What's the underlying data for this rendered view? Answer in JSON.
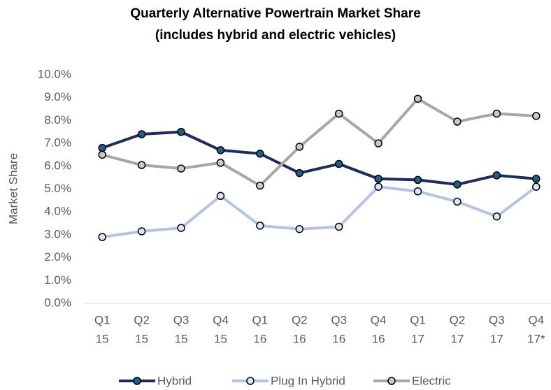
{
  "chart_data": {
    "type": "line",
    "title": "Quarterly Alternative Powertrain Market Share",
    "subtitle": "(includes hybrid and electric vehicles)",
    "y_label": "Market Share",
    "categories": [
      [
        "Q1",
        "15"
      ],
      [
        "Q2",
        "15"
      ],
      [
        "Q3",
        "15"
      ],
      [
        "Q4",
        "15"
      ],
      [
        "Q1",
        "16"
      ],
      [
        "Q2",
        "16"
      ],
      [
        "Q3",
        "16"
      ],
      [
        "Q4",
        "16"
      ],
      [
        "Q1",
        "17"
      ],
      [
        "Q2",
        "17"
      ],
      [
        "Q3",
        "17"
      ],
      [
        "Q4",
        "17*"
      ]
    ],
    "series": [
      {
        "name": "Hybrid",
        "color": "#1f2a60",
        "marker_color": "#1f5f8b",
        "values": [
          6.8,
          7.4,
          7.5,
          6.7,
          6.55,
          5.7,
          6.1,
          5.45,
          5.4,
          5.2,
          5.6,
          5.45
        ]
      },
      {
        "name": "Plug In Hybrid",
        "color": "#b4c3e3",
        "marker_color": "#dde4f2",
        "values": [
          2.9,
          3.15,
          3.3,
          4.7,
          3.4,
          3.25,
          3.35,
          5.1,
          4.9,
          4.45,
          3.8,
          5.1
        ]
      },
      {
        "name": "Electric",
        "color": "#a6a6a6",
        "marker_color": "#c8c8c8",
        "values": [
          6.5,
          6.05,
          5.9,
          6.15,
          5.15,
          6.85,
          8.3,
          7.0,
          8.95,
          7.95,
          8.3,
          8.2
        ]
      }
    ],
    "ylim": [
      0,
      10
    ],
    "yticks": [
      {
        "value": 0,
        "label": "0.0%"
      },
      {
        "value": 1,
        "label": "1.0%"
      },
      {
        "value": 2,
        "label": "2.0%"
      },
      {
        "value": 3,
        "label": "3.0%"
      },
      {
        "value": 4,
        "label": "4.0%"
      },
      {
        "value": 5,
        "label": "5.0%"
      },
      {
        "value": 6,
        "label": "6.0%"
      },
      {
        "value": 7,
        "label": "7.0%"
      },
      {
        "value": 8,
        "label": "8.0%"
      },
      {
        "value": 9,
        "label": "9.0%"
      },
      {
        "value": 10,
        "label": "10.0%"
      }
    ],
    "legend": "bottom"
  }
}
